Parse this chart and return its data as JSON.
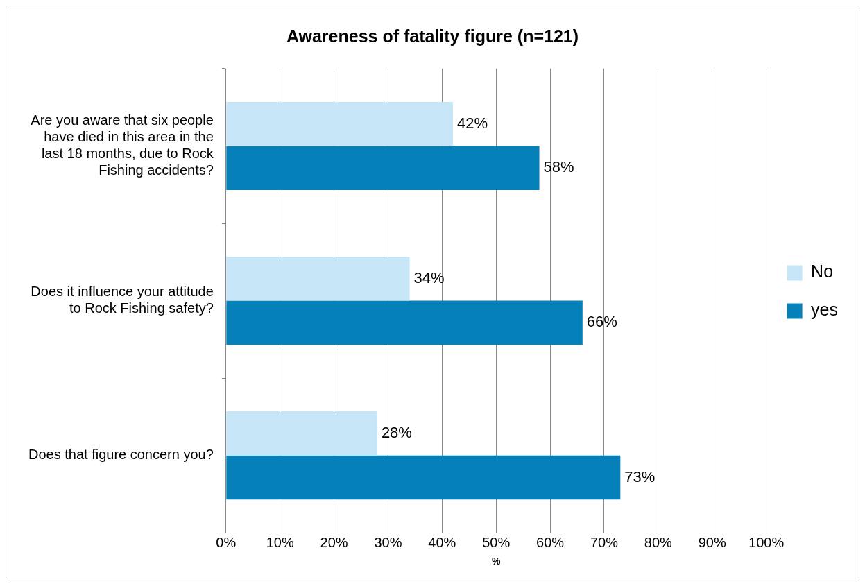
{
  "chart_data": {
    "type": "bar",
    "orientation": "horizontal",
    "title": "Awareness of fatality figure (n=121)",
    "xlabel": "%",
    "categories": [
      "Are you aware that six people have died in this area in the last 18 months, due to Rock Fishing accidents?",
      "Does it influence your attitude to Rock Fishing safety?",
      "Does that figure concern you?"
    ],
    "series": [
      {
        "name": "No",
        "color": "#c6e5f6",
        "values": [
          42,
          34,
          28
        ],
        "value_labels": [
          "42%",
          "34%",
          "28%"
        ]
      },
      {
        "name": "yes",
        "color": "#0580b8",
        "values": [
          58,
          66,
          73
        ],
        "value_labels": [
          "58%",
          "66%",
          "73%"
        ]
      }
    ],
    "xlim": [
      0,
      100
    ],
    "xticks": [
      {
        "value": 0,
        "label": "0%"
      },
      {
        "value": 10,
        "label": "10%"
      },
      {
        "value": 20,
        "label": "20%"
      },
      {
        "value": 30,
        "label": "30%"
      },
      {
        "value": 40,
        "label": "40%"
      },
      {
        "value": 50,
        "label": "50%"
      },
      {
        "value": 60,
        "label": "60%"
      },
      {
        "value": 70,
        "label": "70%"
      },
      {
        "value": 80,
        "label": "80%"
      },
      {
        "value": 90,
        "label": "90%"
      },
      {
        "value": 100,
        "label": "100%"
      }
    ],
    "grid": "x",
    "legend": "right"
  }
}
